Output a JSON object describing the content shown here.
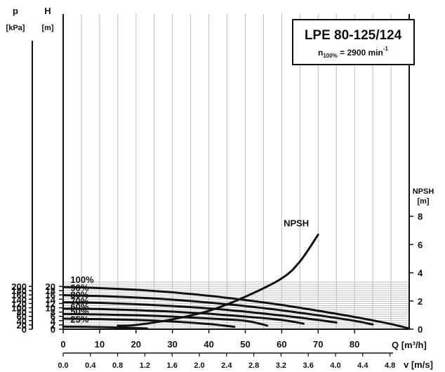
{
  "chart_data": {
    "type": "line",
    "title": "LPE 80-125/124",
    "subtitle": {
      "prefix": "n",
      "sub": "100%",
      "middle": " = 2900 min",
      "sup": "-1"
    },
    "axes": {
      "p": {
        "symbol": "p",
        "unit": "[kPa]",
        "range": [
          0,
          200
        ],
        "ticks": [
          "0",
          "20",
          "40",
          "60",
          "80",
          "100",
          "120",
          "140",
          "160",
          "180",
          "200"
        ]
      },
      "H": {
        "symbol": "H",
        "unit": "[m]",
        "range": [
          0,
          20
        ],
        "ticks": [
          "0",
          "2",
          "4",
          "6",
          "8",
          "10",
          "12",
          "14",
          "16",
          "18",
          "20"
        ]
      },
      "Q": {
        "label": "Q [m³/h]",
        "range": [
          0,
          95
        ],
        "ticks": [
          "0",
          "10",
          "20",
          "30",
          "40",
          "50",
          "60",
          "70",
          "80"
        ]
      },
      "v": {
        "label": "v [m/s]",
        "ticks": [
          "0.0",
          "0.4",
          "0.8",
          "1.2",
          "1.6",
          "2.0",
          "2.4",
          "2.8",
          "3.2",
          "3.6",
          "4.0",
          "4.4",
          "4.8"
        ]
      },
      "NPSH": {
        "symbol": "NPSH",
        "unit": "[m]",
        "range": [
          0,
          10
        ],
        "ticks": [
          "0",
          "2",
          "4",
          "6",
          "8"
        ]
      }
    },
    "grid": true,
    "series": [
      {
        "name": "100%",
        "x": [
          0,
          10,
          20,
          30,
          40,
          50,
          60,
          70,
          80,
          90,
          95
        ],
        "y": [
          19.7,
          19.2,
          18.4,
          17.2,
          15.6,
          13.6,
          11.3,
          8.6,
          5.7,
          2.4,
          0.3
        ]
      },
      {
        "name": "90%",
        "x": [
          0,
          10,
          20,
          30,
          40,
          50,
          60,
          70,
          80,
          85
        ],
        "y": [
          15.9,
          15.5,
          14.8,
          13.8,
          12.4,
          10.8,
          8.8,
          6.5,
          3.9,
          2.2
        ]
      },
      {
        "name": "80%",
        "x": [
          0,
          10,
          20,
          30,
          40,
          50,
          60,
          70,
          75
        ],
        "y": [
          12.6,
          12.3,
          11.7,
          10.8,
          9.7,
          8.2,
          6.4,
          4.3,
          3.1
        ]
      },
      {
        "name": "70%",
        "x": [
          0,
          10,
          20,
          30,
          40,
          50,
          60,
          66
        ],
        "y": [
          9.6,
          9.4,
          8.9,
          8.2,
          7.2,
          5.9,
          4.3,
          2.6
        ]
      },
      {
        "name": "60%",
        "x": [
          0,
          10,
          20,
          30,
          40,
          50,
          56
        ],
        "y": [
          7.1,
          6.9,
          6.5,
          5.9,
          5.0,
          3.9,
          1.7
        ]
      },
      {
        "name": "50%",
        "x": [
          0,
          10,
          20,
          30,
          40,
          47
        ],
        "y": [
          4.9,
          4.7,
          4.3,
          3.6,
          2.4,
          1.1
        ]
      },
      {
        "name": "25%",
        "x": [
          0,
          10,
          20,
          23
        ],
        "y": [
          1.2,
          1.0,
          0.5,
          0.3
        ]
      },
      {
        "name": "NPSH",
        "axis": "NPSH",
        "x": [
          15,
          20,
          30,
          40,
          50,
          60,
          65,
          70
        ],
        "y": [
          0.25,
          0.3,
          0.7,
          1.3,
          2.3,
          3.6,
          4.8,
          6.7
        ]
      }
    ]
  }
}
